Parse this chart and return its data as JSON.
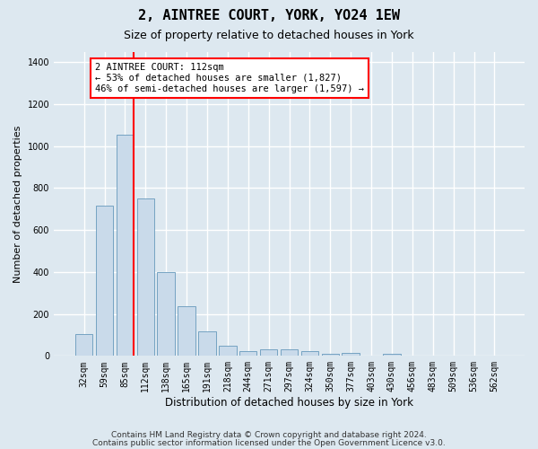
{
  "title": "2, AINTREE COURT, YORK, YO24 1EW",
  "subtitle": "Size of property relative to detached houses in York",
  "xlabel": "Distribution of detached houses by size in York",
  "ylabel": "Number of detached properties",
  "bins": [
    "32sqm",
    "59sqm",
    "85sqm",
    "112sqm",
    "138sqm",
    "165sqm",
    "191sqm",
    "218sqm",
    "244sqm",
    "271sqm",
    "297sqm",
    "324sqm",
    "350sqm",
    "377sqm",
    "403sqm",
    "430sqm",
    "456sqm",
    "483sqm",
    "509sqm",
    "536sqm",
    "562sqm"
  ],
  "values": [
    105,
    715,
    1055,
    750,
    400,
    237,
    115,
    47,
    22,
    30,
    30,
    22,
    10,
    15,
    0,
    12,
    0,
    0,
    0,
    0,
    0
  ],
  "bar_color": "#c9daea",
  "bar_edge_color": "#6699bb",
  "red_line_bin_index": 2,
  "ylim": [
    0,
    1450
  ],
  "yticks": [
    0,
    200,
    400,
    600,
    800,
    1000,
    1200,
    1400
  ],
  "annotation_title": "2 AINTREE COURT: 112sqm",
  "annotation_line1": "← 53% of detached houses are smaller (1,827)",
  "annotation_line2": "46% of semi-detached houses are larger (1,597) →",
  "footer_line1": "Contains HM Land Registry data © Crown copyright and database right 2024.",
  "footer_line2": "Contains public sector information licensed under the Open Government Licence v3.0.",
  "background_color": "#dde8f0",
  "plot_background_color": "#dde8f0",
  "grid_color": "#ffffff",
  "title_fontsize": 11,
  "subtitle_fontsize": 9,
  "xlabel_fontsize": 8.5,
  "ylabel_fontsize": 8,
  "tick_fontsize": 7,
  "footer_fontsize": 6.5
}
